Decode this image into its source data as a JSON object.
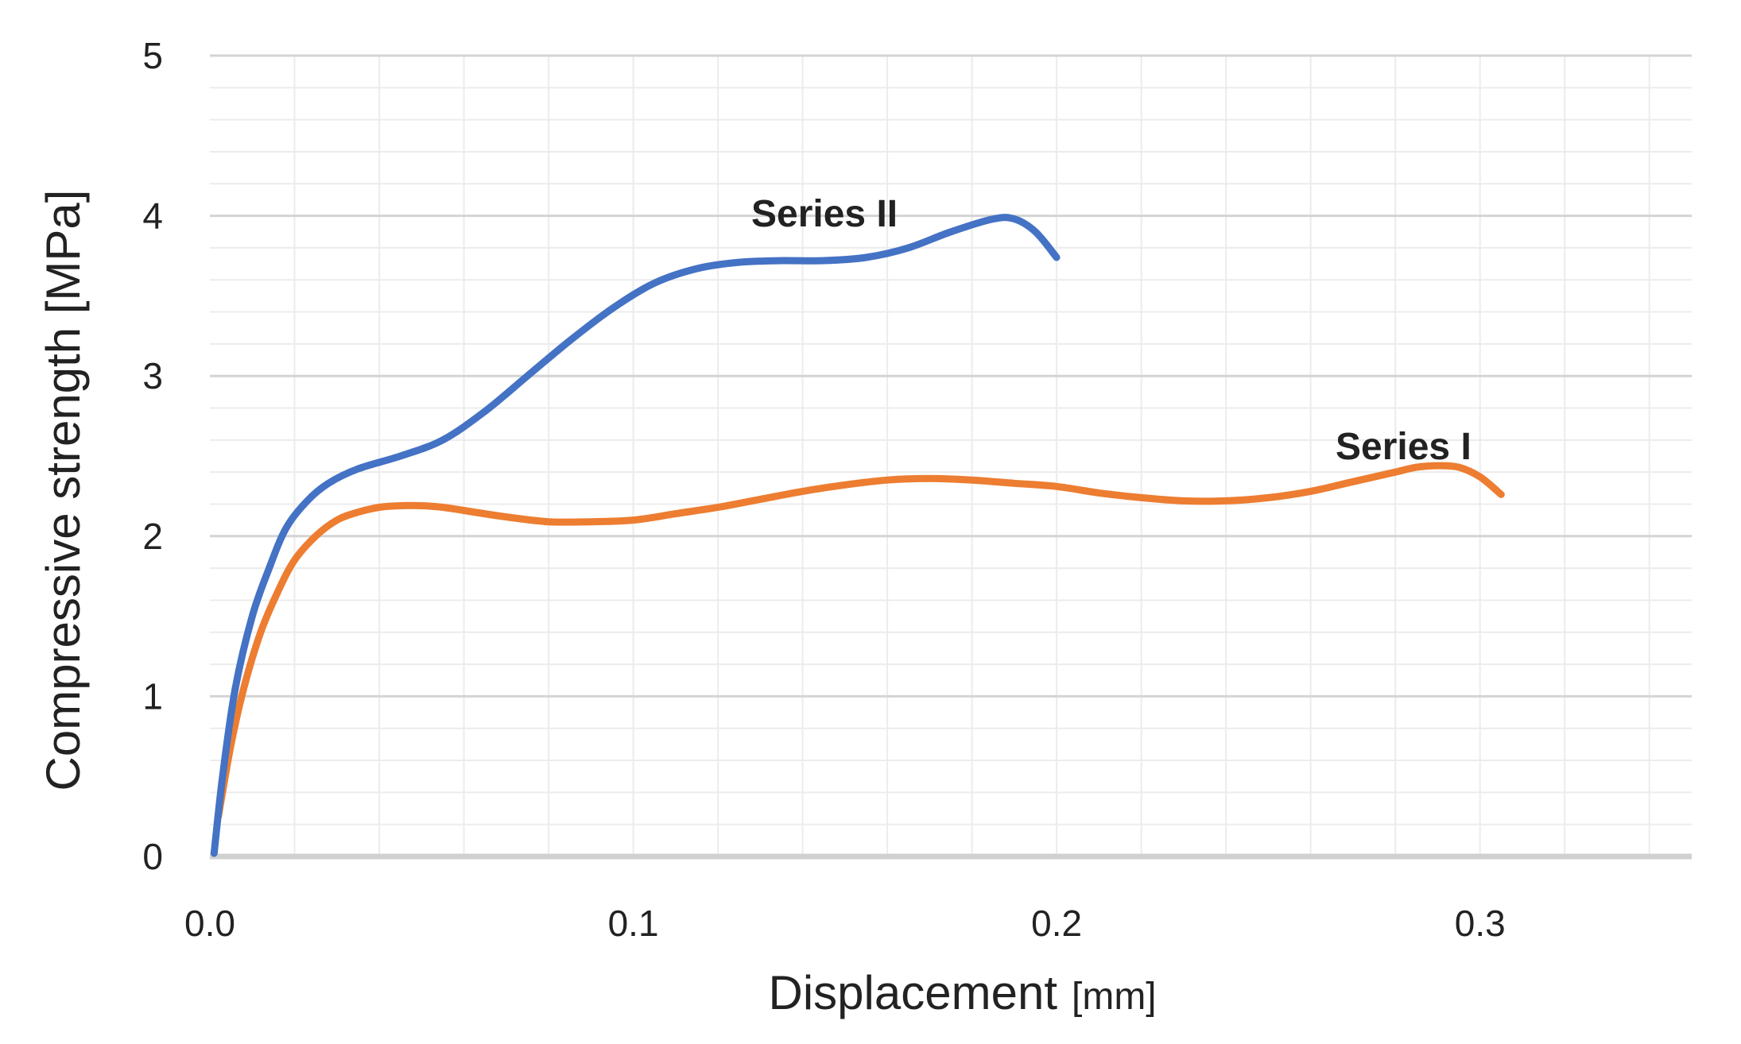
{
  "chart_data": {
    "type": "line",
    "title": "",
    "xlabel": "Displacement",
    "xlabel_unit": "[mm]",
    "ylabel": "Compressive strength [MPa]",
    "xlim": [
      0,
      0.35
    ],
    "ylim": [
      0,
      5
    ],
    "x_ticks": [
      "0.0",
      "0.1",
      "0.2",
      "0.3"
    ],
    "y_ticks": [
      "0",
      "1",
      "2",
      "3",
      "4",
      "5"
    ],
    "grid": true,
    "minor_grid": true,
    "legend": "none (inline series labels)",
    "series": [
      {
        "name": "Series I",
        "color": "#ED7D31",
        "points": [
          [
            0.002,
            0.25
          ],
          [
            0.005,
            0.7
          ],
          [
            0.008,
            1.05
          ],
          [
            0.012,
            1.4
          ],
          [
            0.016,
            1.65
          ],
          [
            0.02,
            1.85
          ],
          [
            0.025,
            2.0
          ],
          [
            0.03,
            2.1
          ],
          [
            0.035,
            2.15
          ],
          [
            0.04,
            2.18
          ],
          [
            0.045,
            2.19
          ],
          [
            0.05,
            2.19
          ],
          [
            0.055,
            2.18
          ],
          [
            0.06,
            2.16
          ],
          [
            0.07,
            2.12
          ],
          [
            0.08,
            2.09
          ],
          [
            0.09,
            2.09
          ],
          [
            0.1,
            2.1
          ],
          [
            0.11,
            2.14
          ],
          [
            0.12,
            2.18
          ],
          [
            0.13,
            2.23
          ],
          [
            0.14,
            2.28
          ],
          [
            0.15,
            2.32
          ],
          [
            0.16,
            2.35
          ],
          [
            0.17,
            2.36
          ],
          [
            0.18,
            2.35
          ],
          [
            0.19,
            2.33
          ],
          [
            0.2,
            2.31
          ],
          [
            0.21,
            2.27
          ],
          [
            0.22,
            2.24
          ],
          [
            0.23,
            2.22
          ],
          [
            0.24,
            2.22
          ],
          [
            0.25,
            2.24
          ],
          [
            0.26,
            2.28
          ],
          [
            0.27,
            2.34
          ],
          [
            0.28,
            2.4
          ],
          [
            0.285,
            2.43
          ],
          [
            0.29,
            2.44
          ],
          [
            0.295,
            2.43
          ],
          [
            0.3,
            2.37
          ],
          [
            0.305,
            2.26
          ]
        ],
        "label": "Series I"
      },
      {
        "name": "Series II",
        "color": "#4472C4",
        "points": [
          [
            0.001,
            0.02
          ],
          [
            0.003,
            0.5
          ],
          [
            0.006,
            1.05
          ],
          [
            0.01,
            1.5
          ],
          [
            0.014,
            1.8
          ],
          [
            0.018,
            2.05
          ],
          [
            0.023,
            2.22
          ],
          [
            0.028,
            2.33
          ],
          [
            0.035,
            2.42
          ],
          [
            0.045,
            2.5
          ],
          [
            0.055,
            2.6
          ],
          [
            0.065,
            2.78
          ],
          [
            0.075,
            3.0
          ],
          [
            0.085,
            3.22
          ],
          [
            0.095,
            3.42
          ],
          [
            0.105,
            3.58
          ],
          [
            0.115,
            3.67
          ],
          [
            0.125,
            3.71
          ],
          [
            0.135,
            3.72
          ],
          [
            0.145,
            3.72
          ],
          [
            0.155,
            3.74
          ],
          [
            0.165,
            3.8
          ],
          [
            0.175,
            3.9
          ],
          [
            0.185,
            3.98
          ],
          [
            0.19,
            3.98
          ],
          [
            0.195,
            3.9
          ],
          [
            0.2,
            3.74
          ]
        ],
        "label": "Series II"
      }
    ]
  }
}
